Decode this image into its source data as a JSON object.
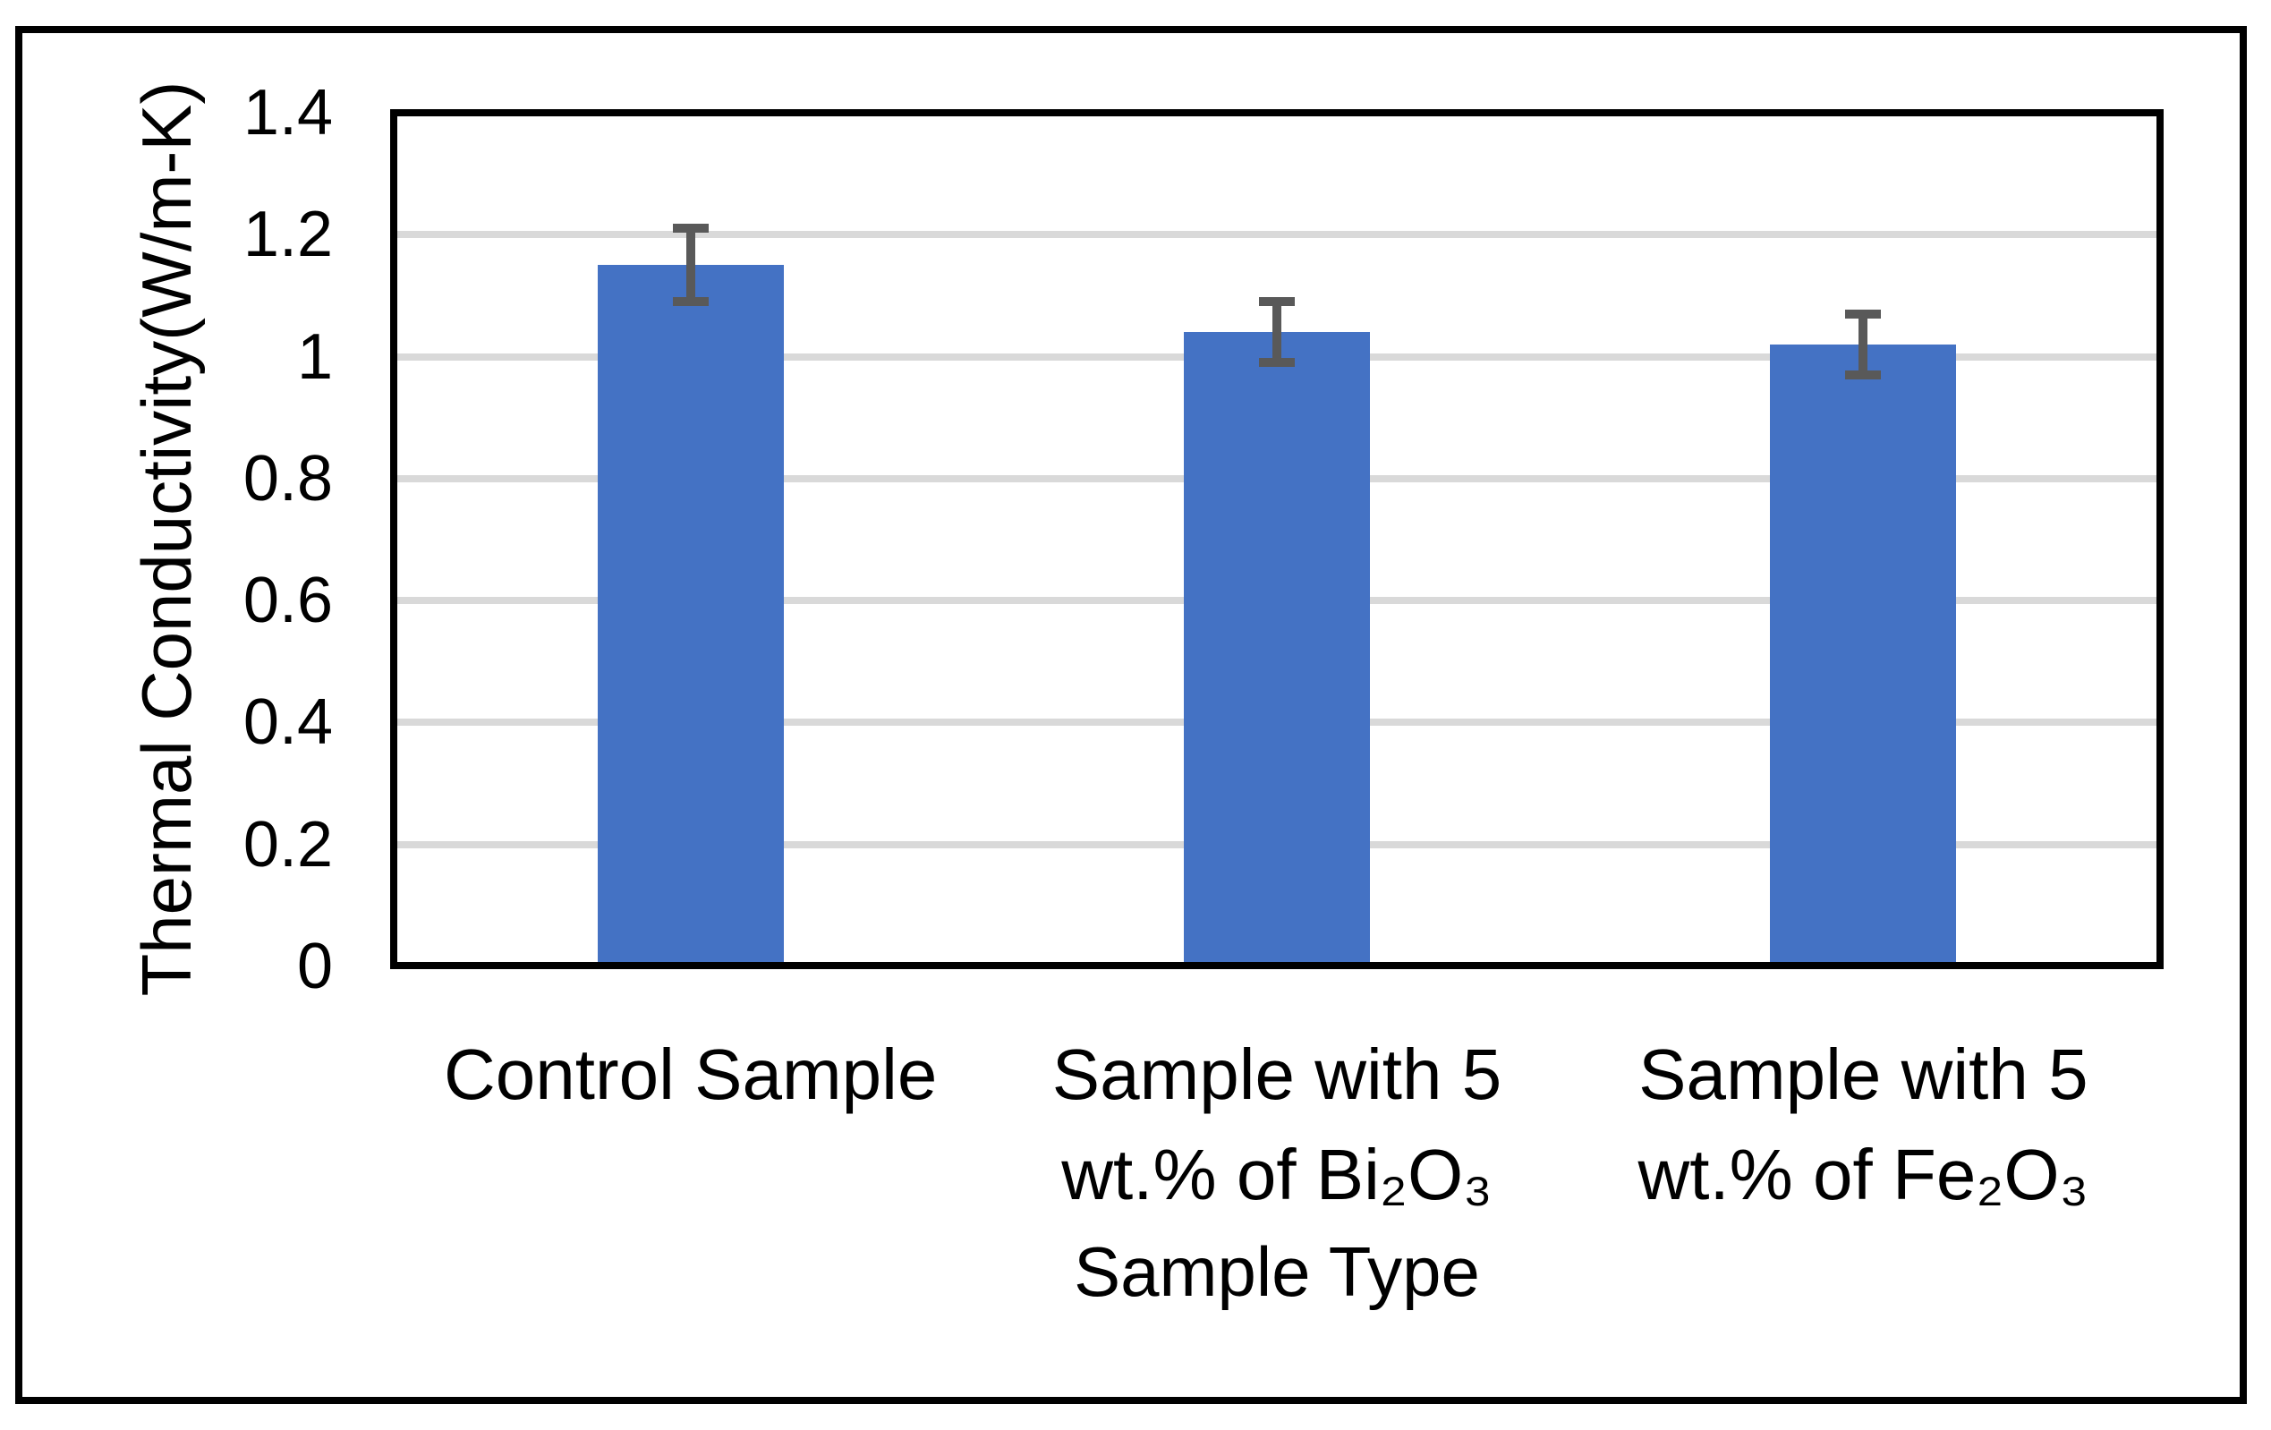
{
  "figure": {
    "background": "#ffffff",
    "border_color": "#000000"
  },
  "chart_data": {
    "type": "bar",
    "title": "",
    "categories": [
      [
        "Control Sample"
      ],
      [
        "Sample with 5",
        "wt.% of Bi₂O₃"
      ],
      [
        "Sample with 5",
        "wt.% of Fe₂O₃"
      ]
    ],
    "series": [
      {
        "name": "Thermal Conductivity",
        "values": [
          1.15,
          1.04,
          1.02
        ],
        "error_bars_plus_minus": [
          0.06,
          0.05,
          0.05
        ]
      }
    ],
    "xlabel": "Sample Type",
    "ylabel": "Thermal Conductivity(W/m-K)",
    "ylim": [
      0,
      1.4
    ],
    "ytick_values": [
      0,
      0.2,
      0.4,
      0.6,
      0.8,
      1,
      1.2,
      1.4
    ],
    "ytick_labels": [
      "0",
      "0.2",
      "0.4",
      "0.6",
      "0.8",
      "1",
      "1.2",
      "1.4"
    ],
    "grid": "horizontal-only",
    "legend": "none",
    "bar_color": "#4472C4",
    "error_bar_color": "#595959",
    "gridline_color": "#D9D9D9",
    "axis_color": "#000000"
  }
}
